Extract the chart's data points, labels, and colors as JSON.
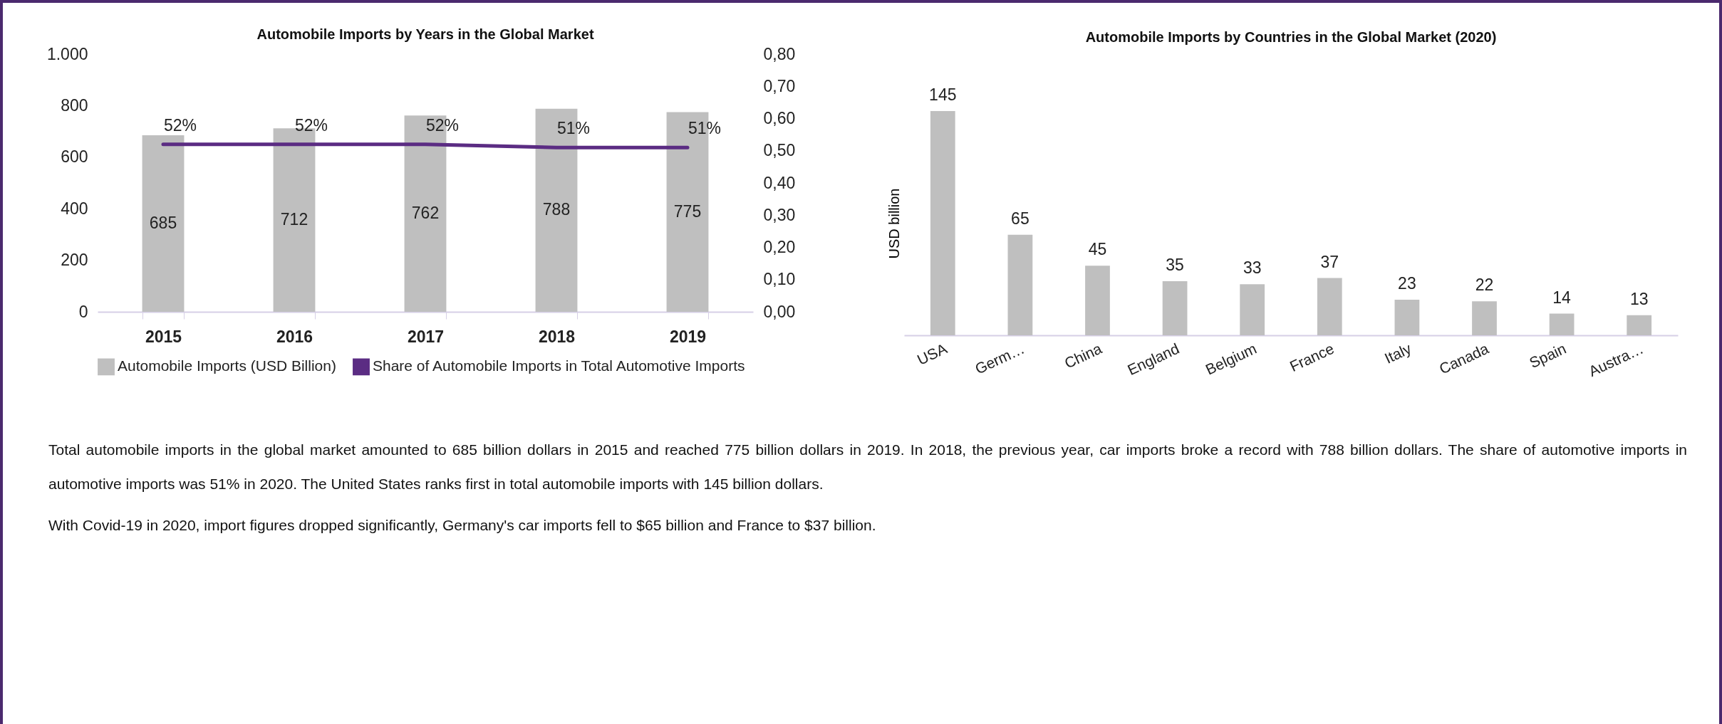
{
  "chart_data": [
    {
      "type": "bar",
      "title": "Automobile Imports by Years in the Global Market",
      "categories": [
        "2015",
        "2016",
        "2017",
        "2018",
        "2019"
      ],
      "series": [
        {
          "name": "Automobile Imports (USD Billion)",
          "color": "#bfbfbf",
          "values": [
            685,
            712,
            762,
            788,
            775
          ],
          "value_labels": [
            "685",
            "712",
            "762",
            "788",
            "775"
          ]
        },
        {
          "name": "Share of Automobile Imports in Total Automotive Imports",
          "type": "line",
          "axis": "y2",
          "color": "#5b2c83",
          "values": [
            0.52,
            0.52,
            0.52,
            0.51,
            0.51
          ],
          "value_labels": [
            "52%",
            "52%",
            "52%",
            "51%",
            "51%"
          ]
        }
      ],
      "ylim": [
        0,
        1000
      ],
      "yticks": [
        0,
        200,
        400,
        600,
        800,
        {
          "value": 1000,
          "label": "1.000"
        }
      ],
      "y2lim": [
        0,
        0.8
      ],
      "y2ticks": [
        {
          "value": 0,
          "label": "0,00"
        },
        {
          "value": 0.1,
          "label": "0,10"
        },
        {
          "value": 0.2,
          "label": "0,20"
        },
        {
          "value": 0.3,
          "label": "0,30"
        },
        {
          "value": 0.4,
          "label": "0,40"
        },
        {
          "value": 0.5,
          "label": "0,50"
        },
        {
          "value": 0.6,
          "label": "0,60"
        },
        {
          "value": 0.7,
          "label": "0,70"
        },
        {
          "value": 0.8,
          "label": "0,80"
        }
      ],
      "legend": "bottom",
      "grid": false
    },
    {
      "type": "bar",
      "title": "Automobile Imports by Countries in the Global Market (2020)",
      "ylabel": "USD billion",
      "categories": [
        "USA",
        "Germ…",
        "China",
        "England",
        "Belgium",
        "France",
        "Italy",
        "Canada",
        "Spain",
        "Austra…"
      ],
      "values": [
        145,
        65,
        45,
        35,
        33,
        37,
        23,
        22,
        14,
        13
      ],
      "color": "#bfbfbf",
      "data_labels": true,
      "grid": false,
      "annotations": [
        "Total automobile imports in the global market amounted to 685 billion dollars in 2015 and reached 775 billion dollars in 2019. In 2018, the previous year, car imports broke a record with 788 billion dollars. The share of automotive imports in automotive imports was 51% in 2020.  The United States ranks first in total automobile imports with 145 billion dollars.",
        "With Covid-19 in 2020, import figures dropped significantly, Germany's car imports fell to $65 billion and France to $37 billion."
      ]
    }
  ]
}
